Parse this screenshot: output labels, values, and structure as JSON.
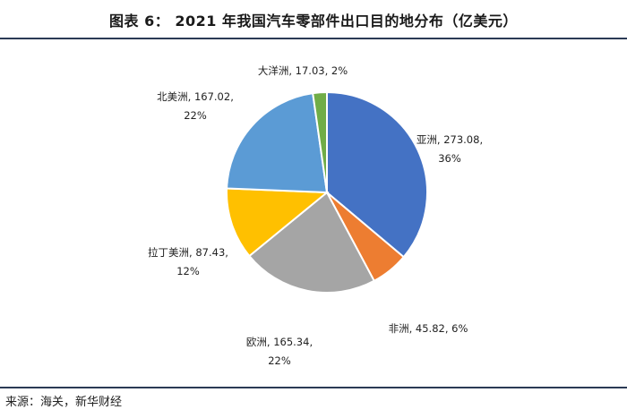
{
  "title": "图表 6： 2021 年我国汽车零部件出口目的地分布（亿美元）",
  "source": "来源：海关，新华财经",
  "chart_data": {
    "type": "pie",
    "title": "图表 6： 2021 年我国汽车零部件出口目的地分布（亿美元）",
    "unit": "亿美元",
    "slices": [
      {
        "name": "亚洲",
        "value": 273.08,
        "percent": "36%",
        "color": "#4472C4",
        "line1": "亚洲, 273.08,",
        "line2": "36%"
      },
      {
        "name": "非洲",
        "value": 45.82,
        "percent": "6%",
        "color": "#ED7D31",
        "line1": "非洲, 45.82, 6%",
        "line2": ""
      },
      {
        "name": "欧洲",
        "value": 165.34,
        "percent": "22%",
        "color": "#A5A5A5",
        "line1": "欧洲, 165.34,",
        "line2": "22%"
      },
      {
        "name": "拉丁美洲",
        "value": 87.43,
        "percent": "12%",
        "color": "#FFC000",
        "line1": "拉丁美洲, 87.43,",
        "line2": "12%"
      },
      {
        "name": "北美洲",
        "value": 167.02,
        "percent": "22%",
        "color": "#5B9BD5",
        "line1": "北美洲, 167.02,",
        "line2": "22%"
      },
      {
        "name": "大洋洲",
        "value": 17.03,
        "percent": "2%",
        "color": "#70AD47",
        "line1": "大洋洲, 17.03, 2%",
        "line2": ""
      }
    ]
  }
}
